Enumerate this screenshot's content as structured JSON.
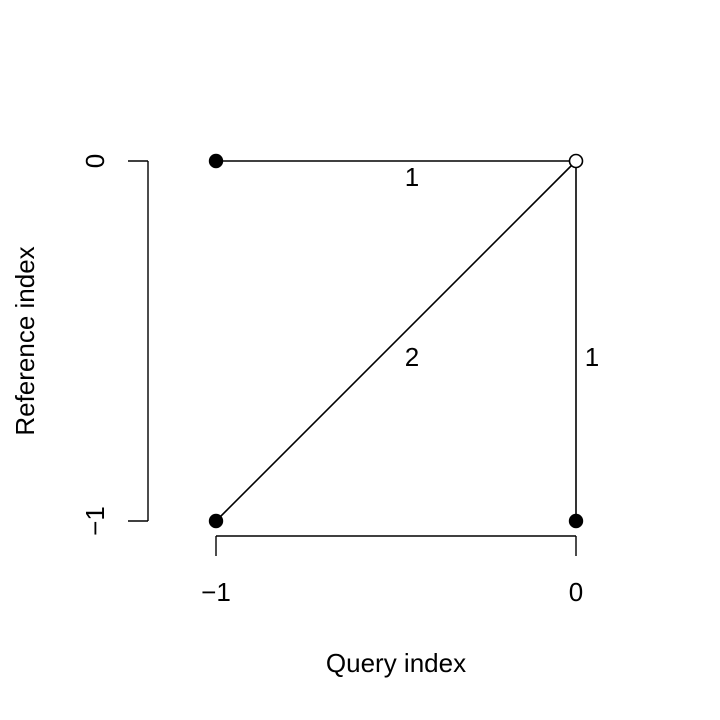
{
  "diagram": {
    "x_axis_label": "Query index",
    "y_axis_label": "Reference index",
    "x_ticks": [
      "−1",
      "0"
    ],
    "y_ticks": [
      "−1",
      "0"
    ],
    "nodes": [
      {
        "id": "n-1-0",
        "q": -1,
        "r": 0,
        "filled": true
      },
      {
        "id": "n0-0",
        "q": 0,
        "r": 0,
        "filled": false
      },
      {
        "id": "n-1--1",
        "q": -1,
        "r": -1,
        "filled": true
      },
      {
        "id": "n0--1",
        "q": 0,
        "r": -1,
        "filled": true
      }
    ],
    "edges": [
      {
        "from": "n-1-0",
        "to": "n0-0",
        "weight": "1"
      },
      {
        "from": "n-1--1",
        "to": "n0-0",
        "weight": "2"
      },
      {
        "from": "n0--1",
        "to": "n0-0",
        "weight": "1"
      }
    ]
  }
}
